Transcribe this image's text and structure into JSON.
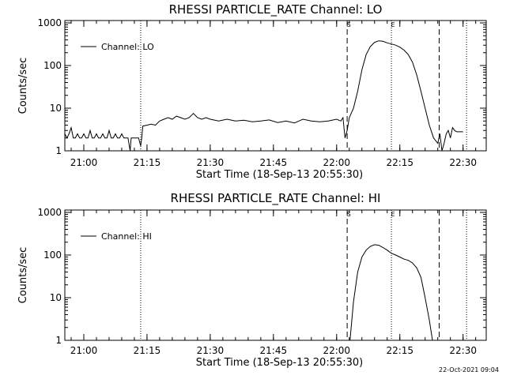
{
  "timestamp": "22-Oct-2021 09:04",
  "chart_data": [
    {
      "type": "line",
      "title": "RHESSI PARTICLE_RATE Channel: LO",
      "xlabel": "Start Time (18-Sep-13 20:55:30)",
      "ylabel": "Counts/sec",
      "y_scale": "log",
      "xlim": [
        "20:55:30",
        "22:35:30"
      ],
      "ylim": [
        1,
        1000
      ],
      "x_ticks": [
        "21:00",
        "21:15",
        "21:30",
        "21:45",
        "22:00",
        "22:15",
        "22:30"
      ],
      "y_ticks": [
        "1",
        "10",
        "100",
        "1000"
      ],
      "legend": "top-left",
      "grid": false,
      "series": [
        {
          "name": "Channel: LO",
          "x": [
            "20:55:30",
            "20:56:00",
            "20:56:30",
            "20:57:00",
            "20:57:30",
            "20:58:00",
            "20:58:30",
            "20:59:00",
            "20:59:30",
            "21:00:00",
            "21:00:30",
            "21:01:00",
            "21:01:30",
            "21:02:00",
            "21:02:30",
            "21:03:00",
            "21:03:30",
            "21:04:00",
            "21:04:30",
            "21:05:00",
            "21:05:30",
            "21:06:00",
            "21:06:30",
            "21:07:00",
            "21:07:30",
            "21:08:00",
            "21:08:30",
            "21:09:00",
            "21:09:30",
            "21:10:00",
            "21:10:30",
            "21:11:00",
            "21:11:15",
            "21:11:30",
            "21:12:00",
            "21:12:30",
            "21:13:00",
            "21:13:30",
            "21:13:45",
            "21:14:00",
            "21:15:00",
            "21:16:00",
            "21:17:00",
            "21:18:00",
            "21:19:00",
            "21:20:00",
            "21:21:00",
            "21:22:00",
            "21:23:00",
            "21:24:00",
            "21:25:00",
            "21:26:00",
            "21:27:00",
            "21:28:00",
            "21:29:00",
            "21:30:00",
            "21:32:00",
            "21:34:00",
            "21:36:00",
            "21:38:00",
            "21:40:00",
            "21:42:00",
            "21:44:00",
            "21:46:00",
            "21:48:00",
            "21:50:00",
            "21:52:00",
            "21:54:00",
            "21:56:00",
            "21:58:00",
            "22:00:00",
            "22:01:00",
            "22:01:30",
            "22:02:00",
            "22:02:30",
            "22:03:00",
            "22:04:00",
            "22:05:00",
            "22:06:00",
            "22:07:00",
            "22:08:00",
            "22:09:00",
            "22:10:00",
            "22:11:00",
            "22:12:00",
            "22:13:00",
            "22:14:00",
            "22:15:00",
            "22:16:00",
            "22:17:00",
            "22:18:00",
            "22:19:00",
            "22:20:00",
            "22:21:00",
            "22:22:00",
            "22:23:00",
            "22:24:00",
            "22:24:30",
            "22:25:00",
            "22:25:30",
            "22:26:00",
            "22:26:30",
            "22:27:00",
            "22:27:30",
            "22:28:00",
            "22:28:30",
            "22:29:00",
            "22:30:00"
          ],
          "y": [
            2.5,
            2.0,
            2.5,
            3.5,
            2.0,
            2.0,
            2.5,
            2.0,
            2.0,
            2.5,
            2.0,
            2.0,
            3.0,
            2.0,
            2.0,
            2.5,
            2.0,
            2.0,
            2.5,
            2.0,
            2.0,
            3.0,
            2.0,
            2.0,
            2.5,
            2.0,
            2.0,
            2.5,
            2.0,
            2.0,
            2.0,
            1.0,
            2.0,
            2.0,
            2.0,
            2.0,
            2.0,
            1.3,
            2.0,
            3.8,
            4.0,
            4.2,
            4.0,
            5.0,
            5.5,
            6.0,
            5.5,
            6.5,
            6.0,
            5.5,
            6.0,
            7.5,
            6.0,
            5.5,
            6.0,
            5.5,
            5.0,
            5.5,
            5.0,
            5.2,
            4.8,
            5.0,
            5.3,
            4.6,
            5.0,
            4.5,
            5.5,
            5.0,
            4.8,
            5.0,
            5.5,
            5.0,
            6.0,
            2.0,
            3.0,
            6.0,
            10.0,
            25.0,
            80.0,
            180.0,
            280.0,
            350.0,
            380.0,
            370.0,
            340.0,
            320.0,
            300.0,
            270.0,
            230.0,
            180.0,
            120.0,
            60.0,
            25.0,
            10.0,
            4.0,
            2.0,
            1.5,
            2.5,
            1.0,
            1.5,
            2.5,
            3.0,
            2.0,
            3.5,
            3.0,
            2.8,
            2.8,
            2.8
          ]
        }
      ],
      "annotations": [
        {
          "label": "S",
          "x": "22:02:30",
          "style": "dashed"
        },
        {
          "label": "E",
          "x": "22:13:00",
          "style": "dotted"
        },
        {
          "label": "",
          "x": "22:24:20",
          "style": "dashed"
        },
        {
          "label": "",
          "x": "21:13:30",
          "style": "dotted"
        },
        {
          "label": "",
          "x": "22:30:50",
          "style": "dotted"
        }
      ]
    },
    {
      "type": "line",
      "title": "RHESSI PARTICLE_RATE Channel: HI",
      "xlabel": "Start Time (18-Sep-13 20:55:30)",
      "ylabel": "Counts/sec",
      "y_scale": "log",
      "xlim": [
        "20:55:30",
        "22:35:30"
      ],
      "ylim": [
        1,
        1000
      ],
      "x_ticks": [
        "21:00",
        "21:15",
        "21:30",
        "21:45",
        "22:00",
        "22:15",
        "22:30"
      ],
      "y_ticks": [
        "1",
        "10",
        "100",
        "1000"
      ],
      "legend": "top-left",
      "grid": false,
      "series": [
        {
          "name": "Channel: HI",
          "x": [
            "22:03:10",
            "22:04:00",
            "22:05:00",
            "22:06:00",
            "22:07:00",
            "22:08:00",
            "22:09:00",
            "22:10:00",
            "22:11:00",
            "22:12:00",
            "22:13:00",
            "22:14:00",
            "22:15:00",
            "22:16:00",
            "22:17:00",
            "22:18:00",
            "22:19:00",
            "22:20:00",
            "22:21:00",
            "22:22:00",
            "22:22:45"
          ],
          "y": [
            1.0,
            8.0,
            40.0,
            90.0,
            130.0,
            160.0,
            175.0,
            170.0,
            150.0,
            130.0,
            110.0,
            100.0,
            90.0,
            80.0,
            75.0,
            65.0,
            50.0,
            30.0,
            10.0,
            3.0,
            1.0
          ]
        }
      ],
      "annotations": [
        {
          "label": "S",
          "x": "22:02:30",
          "style": "dashed"
        },
        {
          "label": "E",
          "x": "22:13:00",
          "style": "dotted"
        },
        {
          "label": "",
          "x": "22:24:20",
          "style": "dashed"
        },
        {
          "label": "",
          "x": "21:13:30",
          "style": "dotted"
        },
        {
          "label": "",
          "x": "22:30:50",
          "style": "dotted"
        }
      ]
    }
  ]
}
